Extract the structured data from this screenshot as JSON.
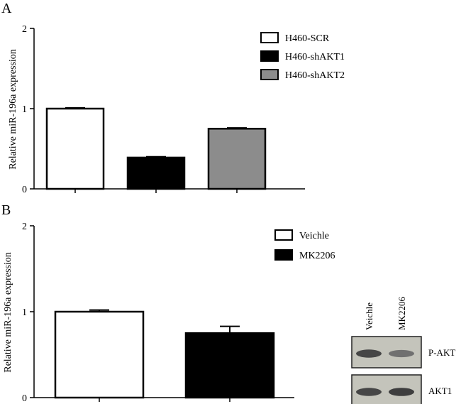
{
  "chart_data": [
    {
      "panel": "A",
      "type": "bar",
      "title": "",
      "xlabel": "",
      "ylabel": "Relative miR-196a expression",
      "ylim": [
        0,
        2
      ],
      "yticks": [
        "0",
        "1",
        "2"
      ],
      "categories": [
        "H460-SCR",
        "H460-shAKT1",
        "H460-shAKT2"
      ],
      "values": [
        1.0,
        0.39,
        0.75
      ],
      "errors": [
        0.01,
        0.01,
        0.01
      ],
      "colors": [
        "#ffffff",
        "#000000",
        "#8c8c8c"
      ],
      "legend": {
        "position": "top-right",
        "entries": [
          {
            "label": "H460-SCR",
            "color": "#ffffff"
          },
          {
            "label": "H460-shAKT1",
            "color": "#000000"
          },
          {
            "label": "H460-shAKT2",
            "color": "#8c8c8c"
          }
        ]
      },
      "grid": false
    },
    {
      "panel": "B",
      "type": "bar",
      "title": "",
      "xlabel": "",
      "ylabel": "Relative miR-196a expression",
      "ylim": [
        0,
        2
      ],
      "yticks": [
        "0",
        "1",
        "2"
      ],
      "categories": [
        "Veichle",
        "MK2206"
      ],
      "values": [
        1.0,
        0.75
      ],
      "errors": [
        0.02,
        0.08
      ],
      "colors": [
        "#ffffff",
        "#000000"
      ],
      "legend": {
        "position": "top-right",
        "entries": [
          {
            "label": "Veichle",
            "color": "#ffffff"
          },
          {
            "label": "MK2206",
            "color": "#000000"
          }
        ]
      },
      "grid": false
    }
  ],
  "blot": {
    "lanes": [
      "Veichle",
      "MK2206"
    ],
    "rows": [
      {
        "label": "P-AKT",
        "band_intensity": [
          0.85,
          0.55
        ]
      },
      {
        "label": "AKT1",
        "band_intensity": [
          0.85,
          0.9
        ]
      }
    ]
  }
}
